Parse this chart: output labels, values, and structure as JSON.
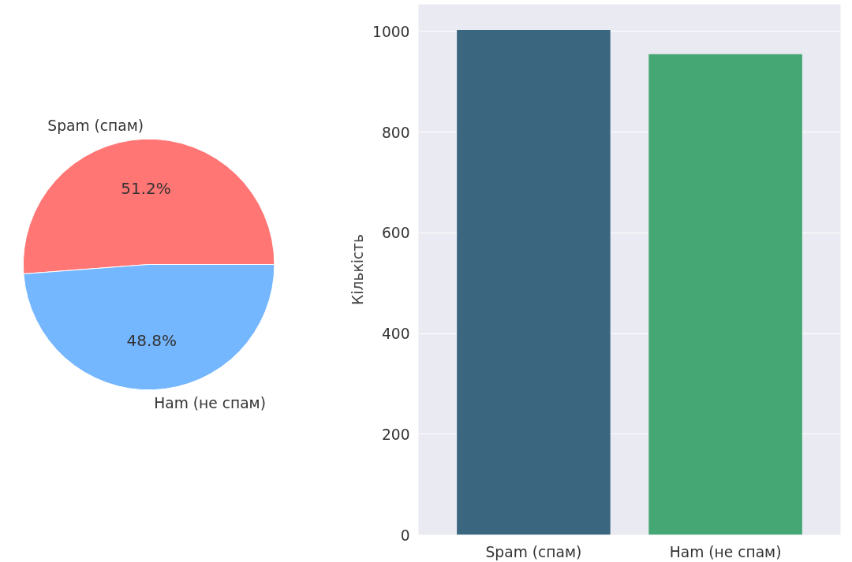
{
  "chart_data": [
    {
      "type": "pie",
      "categories": [
        "Spam (спам)",
        "Ham (не спам)"
      ],
      "values": [
        51.2,
        48.8
      ],
      "colors": [
        "#ff7675",
        "#74b7ff"
      ],
      "value_labels": [
        "51.2%",
        "48.8%"
      ]
    },
    {
      "type": "bar",
      "categories": [
        "Spam (спам)",
        "Ham (не спам)"
      ],
      "values": [
        1003,
        955
      ],
      "colors": [
        "#3b6680",
        "#45a874"
      ],
      "ylabel": "Кількість",
      "ylim": [
        0,
        1054
      ],
      "yticks": [
        0,
        200,
        400,
        600,
        800,
        1000
      ],
      "grid": "y"
    }
  ]
}
